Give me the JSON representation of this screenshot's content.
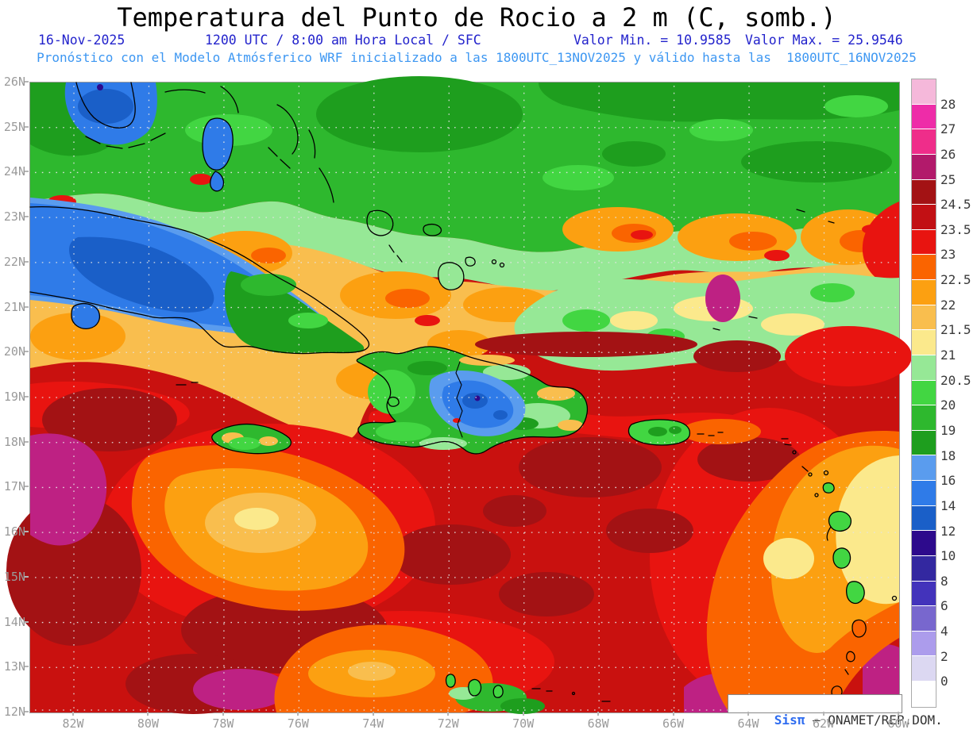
{
  "title": "Temperatura del Punto de Rocio a 2 m (C, somb.)",
  "subtitle": {
    "date": "16-Nov-2025",
    "run_info": "1200 UTC / 8:00 am Hora Local / SFC",
    "min_label": "Valor Min. = 10.9585",
    "max_label": "Valor Max. = 25.9546",
    "model_line": "Pronóstico con el Modelo Atmósferico WRF inicializado a las 1800UTC_13NOV2025 y válido hasta las  1800UTC_16NOV2025"
  },
  "colors": {
    "header_blue": "#2323cc",
    "model_blue": "#3d97f2",
    "axis_gray": "#9a9a9a",
    "cbar_label_dark": "#3a3a3a",
    "watermark_brand_blue": "#2e6cf0"
  },
  "map": {
    "lat_labels": [
      "26N",
      "25N",
      "24N",
      "23N",
      "22N",
      "21N",
      "20N",
      "19N",
      "18N",
      "17N",
      "16N",
      "15N",
      "14N",
      "13N",
      "12N"
    ],
    "lon_labels": [
      "82W",
      "80W",
      "78W",
      "76W",
      "74W",
      "72W",
      "70W",
      "68W",
      "66W",
      "64W",
      "62W",
      "60W"
    ]
  },
  "colorbar": {
    "tick_labels": [
      "28",
      "27",
      "26",
      "25",
      "24.5",
      "23.5",
      "23",
      "22.5",
      "22",
      "21.5",
      "21",
      "20.5",
      "20",
      "19",
      "18",
      "16",
      "14",
      "12",
      "10",
      "8",
      "6",
      "4",
      "2",
      "0"
    ],
    "colors_top_to_bottom": [
      "#f5b8da",
      "#ee2ca8",
      "#ef2d8a",
      "#b21a6b",
      "#a31214",
      "#c21014",
      "#e81410",
      "#fa6400",
      "#fca011",
      "#f9be4e",
      "#fbe98c",
      "#96e896",
      "#42d642",
      "#2eb82e",
      "#1e9e1e",
      "#5a9cee",
      "#2f7be8",
      "#1a5fc8",
      "#2d0a8c",
      "#3328a0",
      "#4333bb",
      "#7867ce",
      "#ac9cec",
      "#dcd8f2",
      "#ffffff"
    ]
  },
  "watermark": {
    "brand": "Sisπ",
    "text": " – ONAMET/REP.DOM."
  },
  "chart_data": {
    "type": "heatmap",
    "variable": "Temperatura del Punto de Rocio a 2 m (C, somb.)",
    "valor_min": 10.9585,
    "valor_max": 25.9546,
    "valid_time": "16-Nov-2025 1200 UTC / 8:00 am Hora Local / SFC",
    "model": "WRF inicializado a las 1800UTC_13NOV2025, válido hasta las 1800UTC_16NOV2025",
    "lat_range": [
      "12N",
      "26N"
    ],
    "lon_range": [
      "82W",
      "60W"
    ],
    "scale_values_C": [
      28,
      27,
      26,
      25,
      24.5,
      23.5,
      23,
      22.5,
      22,
      21.5,
      21,
      20.5,
      20,
      19,
      18,
      16,
      14,
      12,
      10,
      8,
      6,
      4,
      2,
      0
    ],
    "legend_position": "right",
    "grid": "dotted 1deg lat / 2deg lon"
  }
}
